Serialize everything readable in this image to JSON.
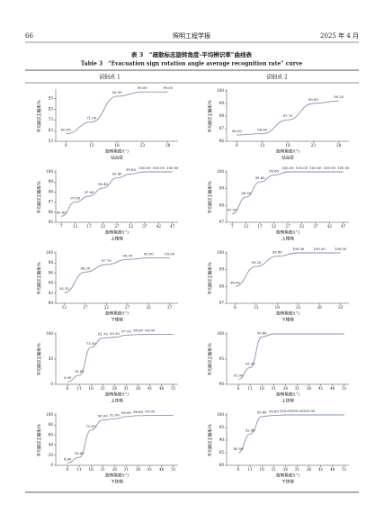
{
  "header": {
    "page": "66",
    "journal": "照明工程学报",
    "date": "2025 年 4 月"
  },
  "table": {
    "title_cn": "表 3　“疏散标志旋转角度-平均辨识率”曲线表",
    "title_en": "Table 3　“Evacuation sign rotation angle average recognition rate” curve",
    "columns": [
      "识别点 1",
      "识别点 2"
    ]
  },
  "chart_data": [
    {
      "type": "line",
      "title": "站台层",
      "x_label": "旋转角度/(°)",
      "y_label": "平均辨识正确率/%",
      "color": "#8193b2",
      "x": [
        8,
        13,
        18,
        23,
        28
      ],
      "xlim": [
        6,
        30
      ],
      "xticks": [
        8,
        13,
        18,
        23,
        28
      ],
      "ylim": [
        53,
        100
      ],
      "yticks": [
        53,
        63,
        73,
        83,
        93
      ],
      "values": [
        60,
        71,
        95,
        99,
        99
      ],
      "value_labels": [
        "60.00",
        "71.00",
        "95.00",
        "99.00",
        "99.00"
      ]
    },
    {
      "type": "line",
      "title": "站台层",
      "x_label": "旋转角度/(°)",
      "y_label": "平均辨识正确率/%",
      "color": "#8193b2",
      "x": [
        8,
        13,
        18,
        23,
        28
      ],
      "xlim": [
        6,
        30
      ],
      "xticks": [
        8,
        13,
        18,
        23,
        28
      ],
      "ylim": [
        96,
        100
      ],
      "yticks": [
        96,
        97,
        98,
        99,
        100
      ],
      "values": [
        96.5,
        96.6,
        97.7,
        99,
        99.2
      ],
      "value_labels": [
        "96.50",
        "96.60",
        "97.70",
        "99.00",
        "99.20"
      ]
    },
    {
      "type": "line",
      "title": "上楼梯",
      "x_label": "旋转角度/(°)",
      "y_label": "平均辨识正确率/%",
      "color": "#8193b2",
      "x": [
        7,
        12,
        17,
        22,
        27,
        32,
        37,
        42,
        47
      ],
      "xlim": [
        5,
        49
      ],
      "xticks": [
        7,
        12,
        17,
        22,
        27,
        32,
        37,
        42,
        47
      ],
      "ylim": [
        95,
        100
      ],
      "yticks": [
        95,
        96,
        97,
        98,
        99,
        100
      ],
      "values": [
        95.6,
        97,
        97.6,
        98.4,
        99.4,
        99.8,
        100,
        100,
        100
      ],
      "value_labels": [
        "95.60",
        "97.00",
        "97.60",
        "98.40",
        "99.40",
        "99.80",
        "100.00",
        "100.00",
        "100.00"
      ]
    },
    {
      "type": "line",
      "title": "上楼梯",
      "x_label": "旋转角度/(°)",
      "y_label": "平均辨识正确率/%",
      "color": "#8193b2",
      "x": [
        7,
        12,
        17,
        22,
        27,
        32,
        37,
        42,
        47
      ],
      "xlim": [
        5,
        49
      ],
      "xticks": [
        7,
        12,
        17,
        22,
        27,
        32,
        37,
        42,
        47
      ],
      "ylim": [
        97,
        100
      ],
      "yticks": [
        97,
        98,
        99,
        100
      ],
      "values": [
        97.5,
        98.5,
        99.4,
        99.8,
        100,
        100,
        100,
        100,
        100
      ],
      "value_labels": [
        "97.50",
        "98.50",
        "99.40",
        "99.80",
        "100.00",
        "100.00",
        "100.00",
        "100.00",
        "100.00"
      ]
    },
    {
      "type": "line",
      "title": "下楼梯",
      "x_label": "旋转角度/(°)",
      "y_label": "平均辨识正确率/%",
      "color": "#8193b2",
      "x": [
        12,
        17,
        22,
        27,
        32,
        37
      ],
      "xlim": [
        10,
        39
      ],
      "xticks": [
        12,
        17,
        22,
        27,
        32,
        37
      ],
      "ylim": [
        90,
        100
      ],
      "yticks": [
        90,
        92,
        94,
        96,
        98,
        100
      ],
      "values": [
        92.1,
        96.2,
        97.7,
        98.7,
        99,
        99
      ],
      "value_labels": [
        "92.10",
        "96.20",
        "97.70",
        "98.70",
        "99.00",
        "99.00"
      ]
    },
    {
      "type": "line",
      "title": "下楼梯",
      "x_label": "旋转角度/(°)",
      "y_label": "平均辨识正确率/%",
      "color": "#8193b2",
      "x": [
        8,
        13,
        18,
        23,
        28,
        33
      ],
      "xlim": [
        6,
        35
      ],
      "xticks": [
        8,
        13,
        18,
        23,
        28,
        33
      ],
      "ylim": [
        97,
        100
      ],
      "yticks": [
        97,
        98,
        99,
        100
      ],
      "values": [
        98,
        99.2,
        99.8,
        100,
        100,
        100
      ],
      "value_labels": [
        "98.00",
        "99.20",
        "99.80",
        "100.00",
        "100.00",
        "100.00"
      ]
    },
    {
      "type": "line",
      "title": "上扶梯",
      "x_label": "旋转角度/(°)",
      "y_label": "平均辨识正确率/%",
      "color": "#8193b2",
      "x": [
        6,
        11,
        16,
        21,
        26,
        31,
        36,
        41,
        46,
        51
      ],
      "xlim": [
        1,
        53
      ],
      "xticks": [
        6,
        11,
        16,
        21,
        26,
        31,
        36,
        41,
        46,
        51
      ],
      "ylim": [
        0,
        100
      ],
      "yticks": [
        0,
        50,
        100
      ],
      "values": [
        5,
        18,
        73.3,
        91.7,
        93.3,
        97.5,
        98.8,
        99,
        99,
        99
      ],
      "value_labels": [
        "5.00",
        "18.00",
        "73.30",
        "91.70",
        "93.30",
        "97.50",
        "98.80",
        "99.00",
        null,
        null
      ]
    },
    {
      "type": "line",
      "title": "上扶梯",
      "x_label": "旋转角度/(°)",
      "y_label": "平均辨识正确率/%",
      "color": "#8193b2",
      "x": [
        6,
        11,
        16,
        21,
        26,
        31,
        36,
        41,
        46,
        51
      ],
      "xlim": [
        1,
        53
      ],
      "xticks": [
        6,
        11,
        16,
        21,
        26,
        31,
        36,
        41,
        46,
        51
      ],
      "ylim": [
        90,
        100
      ],
      "yticks": [
        90,
        95,
        100
      ],
      "values": [
        91,
        93.3,
        99.4,
        100,
        100,
        100,
        100,
        100,
        100,
        100
      ],
      "value_labels": [
        "91.00",
        "93.30",
        "99.40",
        null,
        null,
        null,
        null,
        null,
        null,
        null
      ]
    },
    {
      "type": "line",
      "title": "下扶梯",
      "x_label": "旋转角度/(°)",
      "y_label": "平均辨识正确率/%",
      "color": "#8193b2",
      "x": [
        6,
        11,
        16,
        21,
        26,
        31,
        36,
        41,
        46,
        51
      ],
      "xlim": [
        1,
        53
      ],
      "xticks": [
        6,
        11,
        16,
        21,
        26,
        31,
        36,
        41,
        46,
        51
      ],
      "ylim": [
        0,
        100
      ],
      "yticks": [
        0,
        20,
        40,
        60,
        80,
        100
      ],
      "values": [
        4.6,
        16,
        70,
        90,
        92,
        96.8,
        98.6,
        99,
        99,
        99
      ],
      "value_labels": [
        "4.60",
        "16.00",
        "70.00",
        "90.00",
        "92.00",
        "96.80",
        "98.60",
        "99.00",
        null,
        null
      ]
    },
    {
      "type": "line",
      "title": "下扶梯",
      "x_label": "旋转角度/(°)",
      "y_label": "平均辨识正确率/%",
      "color": "#8193b2",
      "x": [
        6,
        11,
        16,
        21,
        26,
        31,
        36,
        41,
        46,
        51
      ],
      "xlim": [
        1,
        53
      ],
      "xticks": [
        6,
        11,
        16,
        21,
        26,
        31,
        36,
        41,
        46,
        51
      ],
      "ylim": [
        80,
        100
      ],
      "yticks": [
        80,
        85,
        90,
        95,
        100
      ],
      "values": [
        85,
        92.4,
        99.4,
        99.8,
        100,
        100,
        100,
        100,
        100,
        100
      ],
      "value_labels": [
        "85.00",
        "92.40",
        "99.40",
        "99.80",
        "100.00",
        "100.00",
        "100.00",
        null,
        null,
        null
      ]
    }
  ]
}
